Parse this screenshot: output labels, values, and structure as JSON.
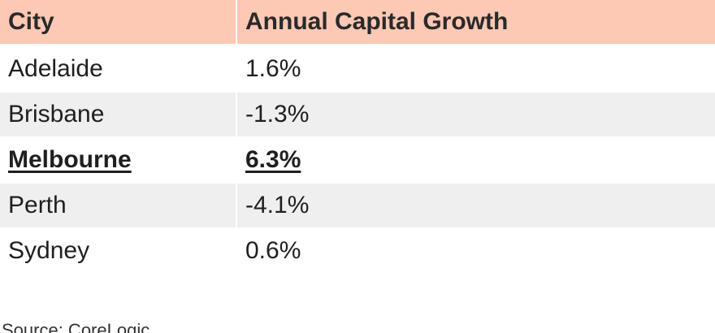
{
  "table": {
    "headers": [
      "City",
      "Annual Capital Growth"
    ],
    "rows": [
      {
        "city": "Adelaide",
        "growth": "1.6%",
        "highlight": false
      },
      {
        "city": "Brisbane",
        "growth": "-1.3%",
        "highlight": false
      },
      {
        "city": "Melbourne",
        "growth": "6.3%",
        "highlight": true
      },
      {
        "city": "Perth",
        "growth": "-4.1%",
        "highlight": false
      },
      {
        "city": "Sydney",
        "growth": "0.6%",
        "highlight": false
      }
    ]
  },
  "source": "Source: CoreLogic",
  "colors": {
    "header_bg": "#fdc8b4",
    "stripe_bg": "#efefef"
  }
}
